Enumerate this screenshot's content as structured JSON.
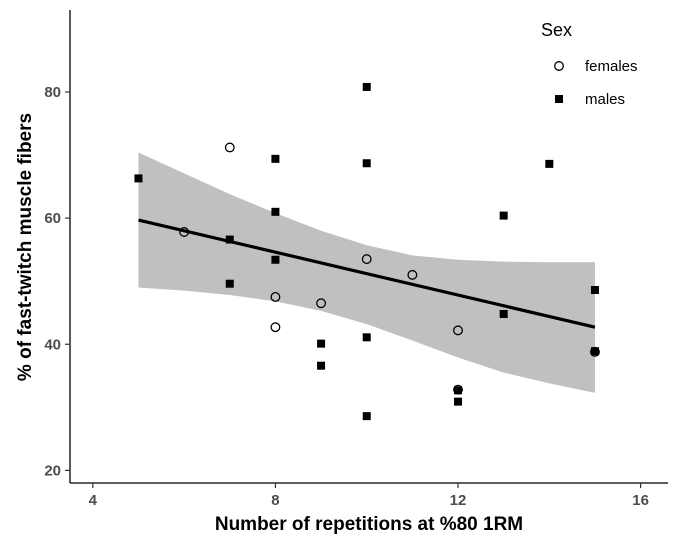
{
  "chart_data": {
    "type": "scatter",
    "xlabel": "Number of repetitions at %80 1RM",
    "ylabel": "% of fast-twitch muscle fibers",
    "xlim": [
      3.5,
      16.6
    ],
    "ylim": [
      18,
      93
    ],
    "x_ticks": [
      4,
      8,
      12,
      16
    ],
    "y_ticks": [
      20,
      40,
      60,
      80
    ],
    "grid": false,
    "legend": {
      "title": "Sex",
      "position": "top-right",
      "entries": [
        {
          "label": "females",
          "marker": "open-circle"
        },
        {
          "label": "males",
          "marker": "filled-square"
        }
      ]
    },
    "series": [
      {
        "name": "females",
        "marker": "open-circle",
        "points": [
          [
            6,
            57.8
          ],
          [
            7,
            71.2
          ],
          [
            8,
            47.5
          ],
          [
            8,
            42.7
          ],
          [
            9,
            46.5
          ],
          [
            10,
            53.5
          ],
          [
            11,
            51.0
          ],
          [
            12,
            42.2
          ],
          [
            12,
            32.8
          ],
          [
            15,
            38.8
          ]
        ]
      },
      {
        "name": "males",
        "marker": "filled-square",
        "points": [
          [
            5,
            66.3
          ],
          [
            7,
            56.6
          ],
          [
            7,
            49.6
          ],
          [
            8,
            69.4
          ],
          [
            8,
            61.0
          ],
          [
            8,
            53.4
          ],
          [
            9,
            40.1
          ],
          [
            9,
            36.6
          ],
          [
            10,
            80.8
          ],
          [
            10,
            68.7
          ],
          [
            10,
            41.1
          ],
          [
            10,
            28.6
          ],
          [
            12,
            32.7
          ],
          [
            12,
            30.9
          ],
          [
            13,
            60.4
          ],
          [
            13,
            44.8
          ],
          [
            14,
            68.6
          ],
          [
            15,
            48.6
          ],
          [
            15,
            38.9
          ]
        ]
      }
    ],
    "fit": {
      "type": "linear",
      "x": [
        5,
        15
      ],
      "y": [
        59.7,
        42.7
      ],
      "ci_lower": [
        [
          5,
          49.0
        ],
        [
          6,
          48.5
        ],
        [
          7,
          47.8
        ],
        [
          8,
          46.8
        ],
        [
          9,
          45.3
        ],
        [
          10,
          43.2
        ],
        [
          11,
          40.6
        ],
        [
          12,
          37.9
        ],
        [
          13,
          35.5
        ],
        [
          14,
          33.8
        ],
        [
          15,
          32.3
        ]
      ],
      "ci_upper": [
        [
          5,
          70.4
        ],
        [
          6,
          67.1
        ],
        [
          7,
          63.8
        ],
        [
          8,
          60.8
        ],
        [
          9,
          58.0
        ],
        [
          10,
          55.7
        ],
        [
          11,
          54.1
        ],
        [
          12,
          53.4
        ],
        [
          13,
          53.1
        ],
        [
          14,
          53.0
        ],
        [
          15,
          53.0
        ]
      ]
    },
    "colors": {
      "points": "#000000",
      "fit_line": "#000000",
      "ci_band": "#c0c0c0"
    }
  }
}
